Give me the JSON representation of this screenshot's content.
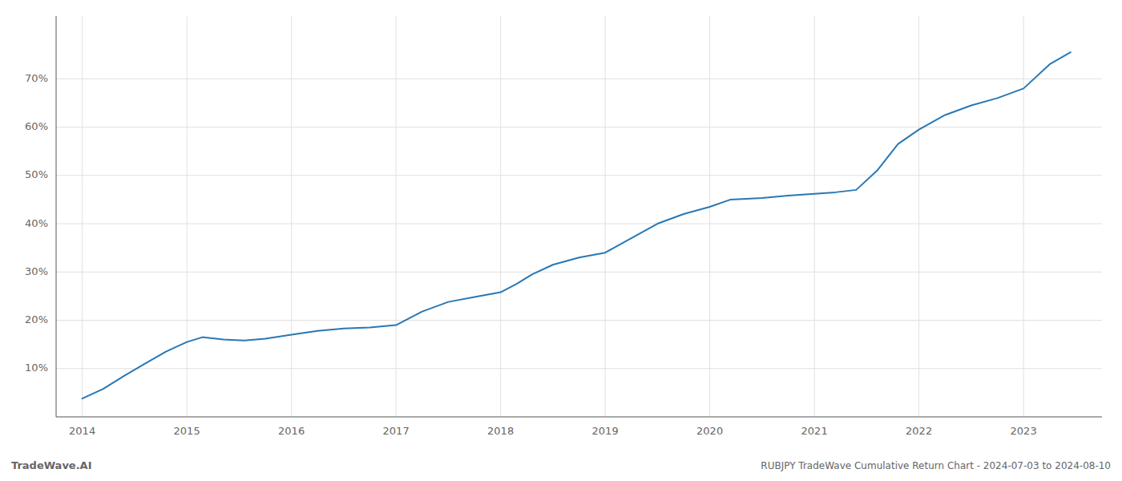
{
  "chart_data": {
    "type": "line",
    "title": "RUBJPY TradeWave Cumulative Return Chart - 2024-07-03 to 2024-08-10",
    "annotations": [
      "TradeWave.AI"
    ],
    "color": "#2778b5",
    "x": [
      2014.0,
      2014.2,
      2014.4,
      2014.6,
      2014.8,
      2015.0,
      2015.15,
      2015.35,
      2015.55,
      2015.75,
      2016.0,
      2016.25,
      2016.5,
      2016.75,
      2017.0,
      2017.25,
      2017.5,
      2017.75,
      2018.0,
      2018.15,
      2018.3,
      2018.5,
      2018.75,
      2019.0,
      2019.25,
      2019.5,
      2019.75,
      2020.0,
      2020.2,
      2020.5,
      2020.75,
      2021.0,
      2021.2,
      2021.4,
      2021.6,
      2021.8,
      2022.0,
      2022.25,
      2022.5,
      2022.75,
      2023.0,
      2023.25,
      2023.45
    ],
    "values": [
      0.038,
      0.058,
      0.085,
      0.11,
      0.135,
      0.155,
      0.165,
      0.16,
      0.158,
      0.162,
      0.17,
      0.178,
      0.183,
      0.185,
      0.19,
      0.218,
      0.238,
      0.248,
      0.258,
      0.275,
      0.295,
      0.315,
      0.33,
      0.34,
      0.37,
      0.4,
      0.42,
      0.435,
      0.45,
      0.453,
      0.458,
      0.462,
      0.465,
      0.47,
      0.51,
      0.565,
      0.595,
      0.625,
      0.645,
      0.66,
      0.68,
      0.73,
      0.755
    ],
    "xlim": [
      2013.75,
      2023.75
    ],
    "ylim": [
      0.0,
      0.83
    ],
    "xticks": [
      2014,
      2015,
      2016,
      2017,
      2018,
      2019,
      2020,
      2021,
      2022,
      2023
    ],
    "yticks": [
      {
        "value": 0.1,
        "label": "10%"
      },
      {
        "value": 0.2,
        "label": "20%"
      },
      {
        "value": 0.3,
        "label": "30%"
      },
      {
        "value": 0.4,
        "label": "40%"
      },
      {
        "value": 0.5,
        "label": "50%"
      },
      {
        "value": 0.6,
        "label": "60%"
      },
      {
        "value": 0.7,
        "label": "70%"
      }
    ],
    "grid": true
  }
}
